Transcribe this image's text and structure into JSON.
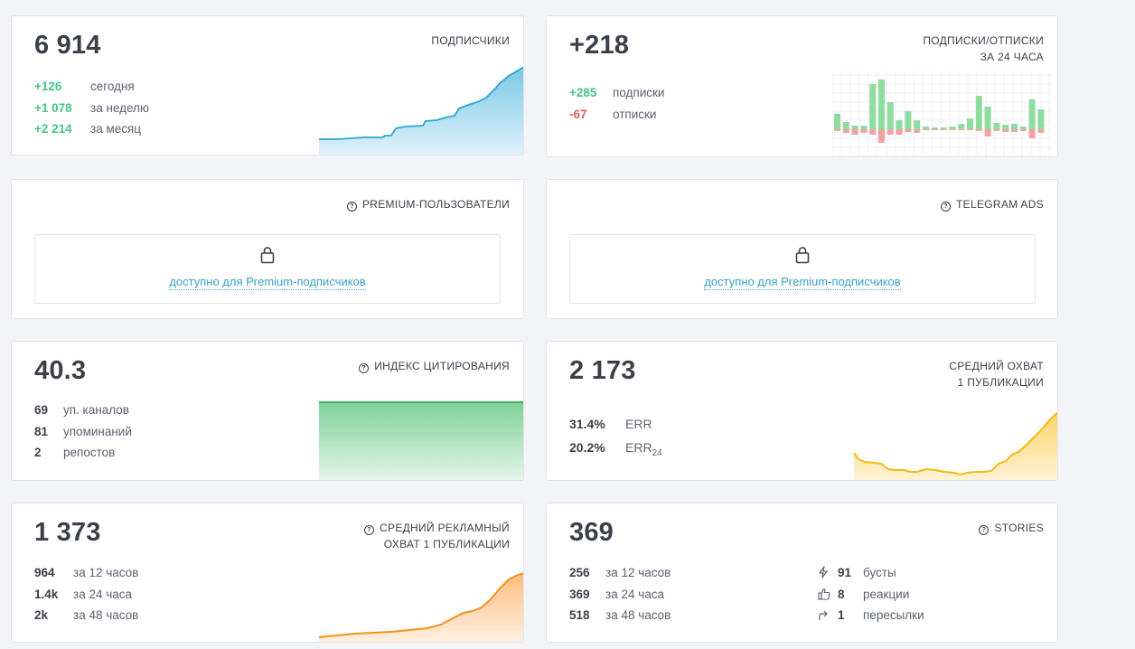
{
  "subscribers": {
    "value": "6 914",
    "title": "ПОДПИСЧИКИ",
    "rows": [
      {
        "v": "+126",
        "l": "сегодня"
      },
      {
        "v": "+1 078",
        "l": "за неделю"
      },
      {
        "v": "+2 214",
        "l": "за месяц"
      }
    ]
  },
  "subunsub": {
    "value": "+218",
    "title_line1": "ПОДПИСКИ/ОТПИСКИ",
    "title_line2": "ЗА 24 ЧАСА",
    "rows": [
      {
        "v": "+285",
        "l": "подписки"
      },
      {
        "v": "-67",
        "l": "отписки"
      }
    ]
  },
  "premium": {
    "title": "PREMIUM-ПОЛЬЗОВАТЕЛИ",
    "link": "доступно для Premium-подписчиков"
  },
  "ads": {
    "title": "TELEGRAM ADS",
    "link": "доступно для Premium-подписчиков"
  },
  "citation": {
    "value": "40.3",
    "title": "ИНДЕКС ЦИТИРОВАНИЯ",
    "rows": [
      {
        "v": "69",
        "l": "уп. каналов"
      },
      {
        "v": "81",
        "l": "упоминаний"
      },
      {
        "v": "2",
        "l": "репостов"
      }
    ]
  },
  "reach": {
    "value": "2 173",
    "title_line1": "СРЕДНИЙ ОХВАТ",
    "title_line2": "1 ПУБЛИКАЦИИ",
    "err_value": "31.4%",
    "err_label": "ERR",
    "err24_value": "20.2%",
    "err24_label": "ERR",
    "err24_sub": "24"
  },
  "adreach": {
    "value": "1 373",
    "title_line1": "СРЕДНИЙ РЕКЛАМНЫЙ",
    "title_line2": "ОХВАТ 1 ПУБЛИКАЦИИ",
    "rows": [
      {
        "v": "964",
        "l": "за 12 часов"
      },
      {
        "v": "1.4k",
        "l": "за 24 часа"
      },
      {
        "v": "2k",
        "l": "за 48 часов"
      }
    ]
  },
  "stories": {
    "value": "369",
    "title": "STORIES",
    "rows": [
      {
        "v": "256",
        "l": "за 12 часов"
      },
      {
        "v": "369",
        "l": "за 24 часа"
      },
      {
        "v": "518",
        "l": "за 48 часов"
      }
    ],
    "right": [
      {
        "icon": "lightning-icon",
        "v": "91",
        "l": "бусты"
      },
      {
        "icon": "thumbs-up-icon",
        "v": "8",
        "l": "реакции"
      },
      {
        "icon": "forward-arrow-icon",
        "v": "1",
        "l": "пересылки"
      }
    ]
  },
  "colors": {
    "green": "#45c483",
    "red": "#ec5a5a",
    "blue": "#2aa6d6",
    "orange": "#f4901e",
    "yellow": "#f5b914"
  }
}
